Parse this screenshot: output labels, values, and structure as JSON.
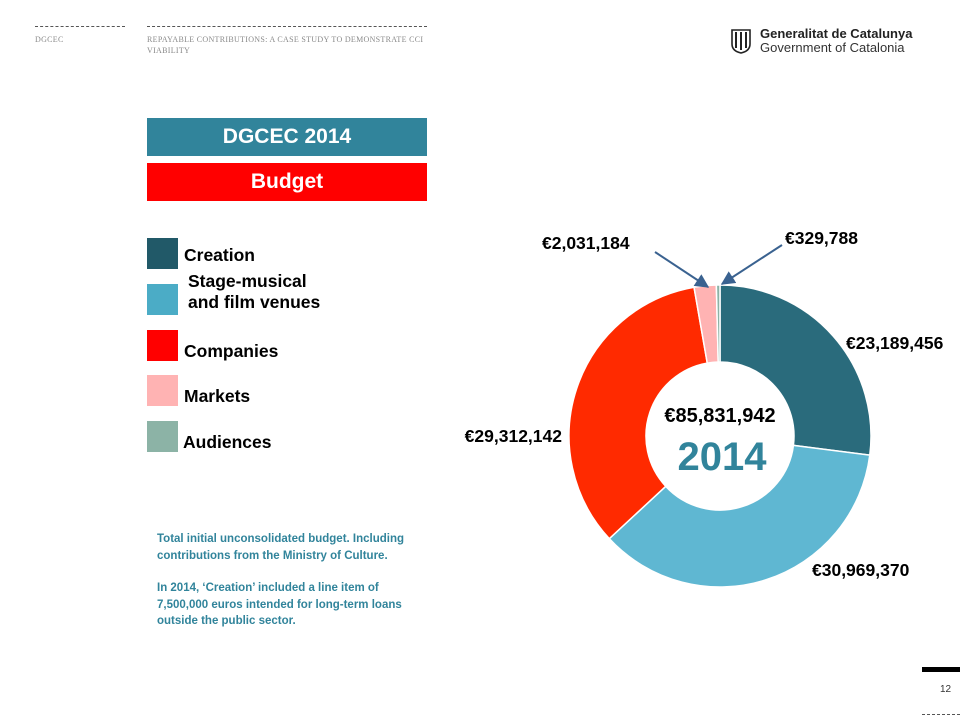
{
  "header": {
    "section": "DGCEC",
    "doc_title": "REPAYABLE CONTRIBUTIONS: A CASE STUDY TO DEMONSTRATE CCI VIABILITY",
    "logo_line1": "Generalitat de Catalunya",
    "logo_line2": "Government of Catalonia"
  },
  "title_band": "DGCEC 2014",
  "subtitle_band": "Budget",
  "legend": [
    {
      "label": "Creation",
      "color": "#215968"
    },
    {
      "label": "Stage-musical\nand film venues",
      "color": "#4bacc6"
    },
    {
      "label": "Companies",
      "color": "#ff0000"
    },
    {
      "label": "Markets",
      "color": "#ffb3b3"
    },
    {
      "label": "Audiences",
      "color": "#8cb3a6"
    }
  ],
  "notes": [
    "Total initial unconsolidated budget. Including contributions from the Ministry of Culture.",
    "In 2014, ‘Creation’ included a line item of 7,500,000 euros intended for long-term loans outside the public sector."
  ],
  "page_number": "12",
  "chart_data": {
    "type": "pie",
    "donut": true,
    "center_total": "€85,831,942",
    "center_year": "2014",
    "slices": [
      {
        "category": "Creation",
        "value": 23189456,
        "label": "€23,189,456",
        "color": "#2a6b7c"
      },
      {
        "category": "Stage-musical and film venues",
        "value": 30969370,
        "label": "€30,969,370",
        "color": "#5fb7d2"
      },
      {
        "category": "Companies",
        "value": 29312142,
        "label": "€29,312,142",
        "color": "#ff2a00"
      },
      {
        "category": "Markets",
        "value": 2031184,
        "label": "€2,031,184",
        "color": "#ffb3b3"
      },
      {
        "category": "Audiences",
        "value": 329788,
        "label": "€329,788",
        "color": "#8cb3a6"
      }
    ]
  }
}
